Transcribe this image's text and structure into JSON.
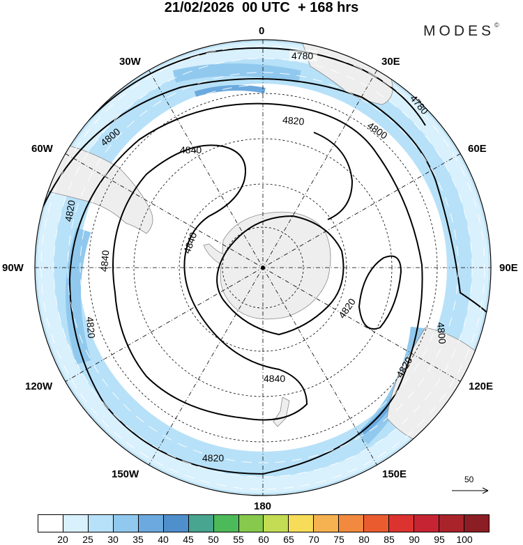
{
  "header": {
    "title": "21/02/2026  00 UTC  + 168 hrs",
    "brand": "MODES",
    "brand_mark": "©"
  },
  "map": {
    "projection": "south-polar-stereographic",
    "longitude_labels": {
      "top": "0",
      "top_right": "30E",
      "right_upper": "60E",
      "right": "90E",
      "right_lower": "120E",
      "bottom_right": "150E",
      "bottom": "180",
      "bottom_left": "150W",
      "left_lower": "120W",
      "left": "90W",
      "left_upper": "60W",
      "top_left": "30W"
    },
    "contour_labels": [
      "4780",
      "4780",
      "4800",
      "4800",
      "4800",
      "4820",
      "4820",
      "4820",
      "4820",
      "4820",
      "4820",
      "4840",
      "4840",
      "4840",
      "4840"
    ],
    "reference_vector": "50"
  },
  "colorbar": {
    "labels": [
      "20",
      "25",
      "30",
      "35",
      "40",
      "45",
      "50",
      "55",
      "60",
      "65",
      "70",
      "75",
      "80",
      "85",
      "90",
      "95",
      "100"
    ],
    "colors": [
      "#ffffff",
      "#d9f0fd",
      "#b7e1f8",
      "#91c9ee",
      "#6ba9de",
      "#4f8fcc",
      "#48a58f",
      "#4dba59",
      "#86c94d",
      "#c3dc53",
      "#f6dc58",
      "#f6b150",
      "#f18a3f",
      "#ea5c30",
      "#dc3330",
      "#c72433",
      "#a9232b",
      "#8b1d24"
    ]
  }
}
